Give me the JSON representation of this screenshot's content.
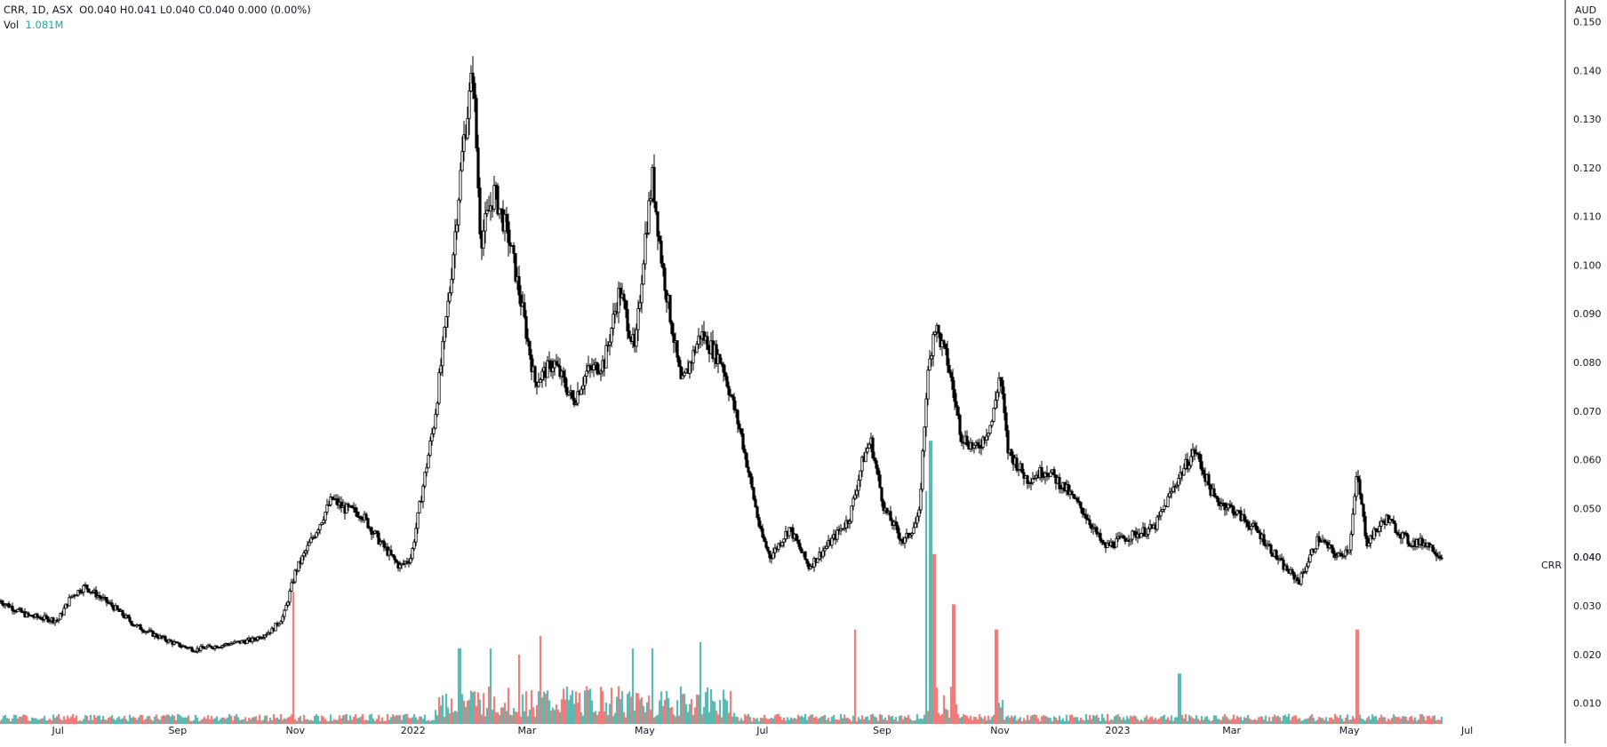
{
  "header": {
    "symbol_line": "CRR, 1D, ASX",
    "ohlc": "O0.040 H0.041 L0.040 C0.040 0.000 (0.00%)",
    "vol_label": "Vol",
    "vol_value": "1.081M"
  },
  "axis": {
    "currency": "AUD",
    "last_symbol": "CRR",
    "last_price_label": "0.040"
  },
  "colors": {
    "candle": "#000000",
    "vol_up": "#26a69a",
    "vol_down": "#ef5350",
    "axis_line": "#131722",
    "text": "#131722"
  },
  "chart_data": {
    "type": "line",
    "title": "",
    "xlabel": "",
    "ylabel": "",
    "ylim": [
      0.005,
      0.151
    ],
    "y_ticks": [
      "0.010",
      "0.020",
      "0.030",
      "0.040",
      "0.050",
      "0.060",
      "0.070",
      "0.080",
      "0.090",
      "0.100",
      "0.110",
      "0.120",
      "0.130",
      "0.140",
      "0.150"
    ],
    "x_ticks": [
      {
        "label": "Jul",
        "x": "2021-07-01"
      },
      {
        "label": "Sep",
        "x": "2021-09-01"
      },
      {
        "label": "Nov",
        "x": "2021-11-01"
      },
      {
        "label": "2022",
        "x": "2022-01-01"
      },
      {
        "label": "Mar",
        "x": "2022-03-01"
      },
      {
        "label": "May",
        "x": "2022-05-01"
      },
      {
        "label": "Jul",
        "x": "2022-07-01"
      },
      {
        "label": "Sep",
        "x": "2022-09-01"
      },
      {
        "label": "Nov",
        "x": "2022-11-01"
      },
      {
        "label": "2023",
        "x": "2023-01-01"
      },
      {
        "label": "Mar",
        "x": "2023-03-01"
      },
      {
        "label": "May",
        "x": "2023-05-01"
      },
      {
        "label": "Jul",
        "x": "2023-07-01"
      }
    ],
    "series": [
      {
        "values": [
          [
            "2021-06-01",
            0.031
          ],
          [
            "2021-06-15",
            0.028
          ],
          [
            "2021-07-01",
            0.027
          ],
          [
            "2021-07-08",
            0.032
          ],
          [
            "2021-07-15",
            0.034
          ],
          [
            "2021-07-29",
            0.03
          ],
          [
            "2021-08-10",
            0.026
          ],
          [
            "2021-08-20",
            0.024
          ],
          [
            "2021-09-01",
            0.022
          ],
          [
            "2021-09-10",
            0.021
          ],
          [
            "2021-09-25",
            0.022
          ],
          [
            "2021-10-10",
            0.023
          ],
          [
            "2021-10-20",
            0.025
          ],
          [
            "2021-10-26",
            0.028
          ],
          [
            "2021-11-01",
            0.037
          ],
          [
            "2021-11-10",
            0.044
          ],
          [
            "2021-11-20",
            0.052
          ],
          [
            "2021-11-26",
            0.05
          ],
          [
            "2021-12-05",
            0.049
          ],
          [
            "2021-12-15",
            0.043
          ],
          [
            "2021-12-25",
            0.038
          ],
          [
            "2021-12-31",
            0.04
          ],
          [
            "2022-01-05",
            0.052
          ],
          [
            "2022-01-12",
            0.068
          ],
          [
            "2022-01-20",
            0.095
          ],
          [
            "2022-01-27",
            0.125
          ],
          [
            "2022-02-01",
            0.14
          ],
          [
            "2022-02-05",
            0.105
          ],
          [
            "2022-02-12",
            0.115
          ],
          [
            "2022-02-20",
            0.105
          ],
          [
            "2022-02-27",
            0.09
          ],
          [
            "2022-03-05",
            0.076
          ],
          [
            "2022-03-15",
            0.08
          ],
          [
            "2022-03-25",
            0.072
          ],
          [
            "2022-04-01",
            0.078
          ],
          [
            "2022-04-10",
            0.08
          ],
          [
            "2022-04-18",
            0.095
          ],
          [
            "2022-04-26",
            0.082
          ],
          [
            "2022-05-01",
            0.105
          ],
          [
            "2022-05-05",
            0.118
          ],
          [
            "2022-05-10",
            0.1
          ],
          [
            "2022-05-20",
            0.075
          ],
          [
            "2022-05-30",
            0.086
          ],
          [
            "2022-06-10",
            0.08
          ],
          [
            "2022-06-20",
            0.065
          ],
          [
            "2022-06-30",
            0.045
          ],
          [
            "2022-07-05",
            0.04
          ],
          [
            "2022-07-15",
            0.046
          ],
          [
            "2022-07-25",
            0.038
          ],
          [
            "2022-08-05",
            0.043
          ],
          [
            "2022-08-15",
            0.048
          ],
          [
            "2022-08-22",
            0.06
          ],
          [
            "2022-08-26",
            0.064
          ],
          [
            "2022-09-02",
            0.05
          ],
          [
            "2022-09-12",
            0.043
          ],
          [
            "2022-09-20",
            0.048
          ],
          [
            "2022-09-24",
            0.075
          ],
          [
            "2022-09-28",
            0.088
          ],
          [
            "2022-10-05",
            0.08
          ],
          [
            "2022-10-12",
            0.065
          ],
          [
            "2022-10-20",
            0.062
          ],
          [
            "2022-10-28",
            0.068
          ],
          [
            "2022-11-01",
            0.078
          ],
          [
            "2022-11-05",
            0.062
          ],
          [
            "2022-11-15",
            0.056
          ],
          [
            "2022-11-25",
            0.058
          ],
          [
            "2022-12-05",
            0.054
          ],
          [
            "2022-12-15",
            0.049
          ],
          [
            "2022-12-25",
            0.042
          ],
          [
            "2023-01-05",
            0.044
          ],
          [
            "2023-01-20",
            0.046
          ],
          [
            "2023-02-01",
            0.056
          ],
          [
            "2023-02-10",
            0.062
          ],
          [
            "2023-02-20",
            0.052
          ],
          [
            "2023-03-01",
            0.05
          ],
          [
            "2023-03-15",
            0.045
          ],
          [
            "2023-03-28",
            0.038
          ],
          [
            "2023-04-05",
            0.035
          ],
          [
            "2023-04-15",
            0.044
          ],
          [
            "2023-04-25",
            0.04
          ],
          [
            "2023-05-01",
            0.042
          ],
          [
            "2023-05-05",
            0.057
          ],
          [
            "2023-05-10",
            0.043
          ],
          [
            "2023-05-20",
            0.048
          ],
          [
            "2023-06-01",
            0.043
          ],
          [
            "2023-06-10",
            0.043
          ],
          [
            "2023-06-18",
            0.04
          ]
        ]
      }
    ],
    "volume": [
      [
        "2021-10-31",
        0.21,
        "down"
      ],
      [
        "2022-01-25",
        0.12,
        "up"
      ],
      [
        "2022-02-10",
        0.12,
        "up"
      ],
      [
        "2022-02-25",
        0.11,
        "down"
      ],
      [
        "2022-03-08",
        0.14,
        "down"
      ],
      [
        "2022-04-25",
        0.12,
        "up"
      ],
      [
        "2022-05-05",
        0.12,
        "up"
      ],
      [
        "2022-05-30",
        0.13,
        "up"
      ],
      [
        "2022-08-18",
        0.15,
        "down"
      ],
      [
        "2022-09-24",
        0.37,
        "up"
      ],
      [
        "2022-09-26",
        0.45,
        "up"
      ],
      [
        "2022-09-28",
        0.27,
        "down"
      ],
      [
        "2022-10-08",
        0.19,
        "down"
      ],
      [
        "2022-10-30",
        0.15,
        "down"
      ],
      [
        "2023-02-02",
        0.08,
        "up"
      ],
      [
        "2023-05-05",
        0.15,
        "down"
      ]
    ]
  }
}
